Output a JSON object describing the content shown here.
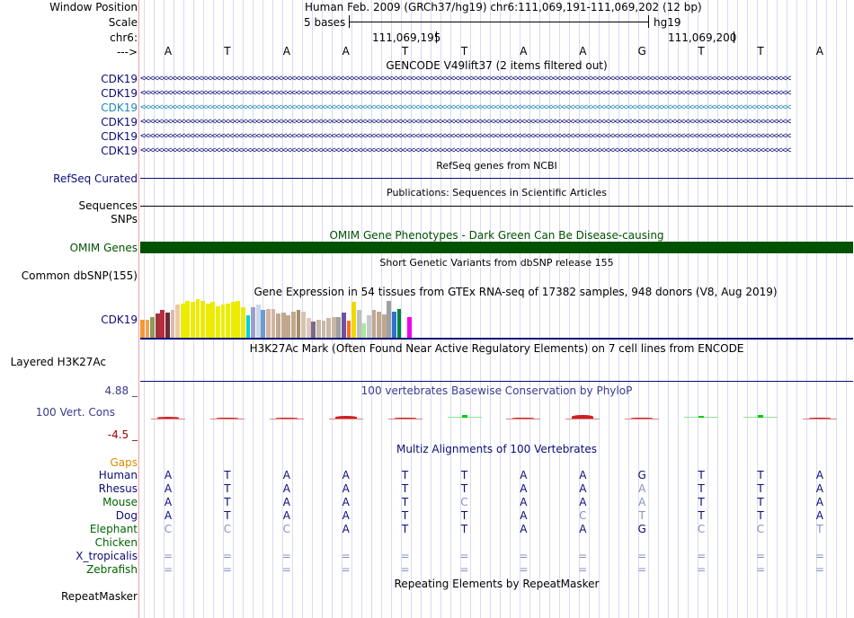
{
  "header": {
    "window_position_label": "Window Position",
    "scale_label": "Scale",
    "chrom_label": "chr6:",
    "strand_label": "--->",
    "assembly_text": "Human Feb. 2009 (GRCh37/hg19)   chr6:111,069,191-111,069,202 (12 bp)",
    "scale_text": "5 bases",
    "scale_db": "hg19",
    "coord1": "111,069,195",
    "coord2": "111,069,200",
    "bases": [
      "A",
      "T",
      "A",
      "A",
      "T",
      "T",
      "A",
      "A",
      "G",
      "T",
      "T",
      "A"
    ]
  },
  "tracks": {
    "gencode_title": "GENCODE V49lift37 (2 items filtered out)",
    "gencode_items": [
      {
        "label": "CDK19",
        "color": "#0c0c78"
      },
      {
        "label": "CDK19",
        "color": "#0c0c78"
      },
      {
        "label": "CDK19",
        "color": "#1a88b4"
      },
      {
        "label": "CDK19",
        "color": "#0c0c78"
      },
      {
        "label": "CDK19",
        "color": "#0c0c78"
      },
      {
        "label": "CDK19",
        "color": "#0c0c78"
      }
    ],
    "arrows": "<<<<<<<<<<<<<<<<<<<<<<<<<<<<<<<<<<<<<<<<<<<<<<<<<<<<<<<<<<<<<<<<<<<<<<<<<<<<<<<<<<<<<<<<<<<<<<<<<<<<<<<<<<<<<<<<<<<<<<<<<<<<<<<<<<<<<<<<<<<<<<<<<<<",
    "refseq_title": "RefSeq genes from NCBI",
    "refseq_label": "RefSeq Curated",
    "pubs_title": "Publications: Sequences in Scientific Articles",
    "sequences_label": "Sequences",
    "snps_label": "SNPs",
    "omim_title": "OMIM Gene Phenotypes - Dark Green Can Be Disease-causing",
    "omim_label": "OMIM Genes",
    "dbsnp_title": "Short Genetic Variants from dbSNP release 155",
    "dbsnp_label": "Common dbSNP(155)",
    "gtex_title": "Gene Expression in 54 tissues from GTEx RNA-seq of 17382 samples, 948 donors (V8, Aug 2019)",
    "gtex_label": "CDK19",
    "h3k_title": "H3K27Ac Mark (Often Found Near Active Regulatory Elements) on 7 cell lines from ENCODE",
    "h3k_label": "Layered H3K27Ac",
    "phylop_title": "100 vertebrates Basewise Conservation by PhyloP",
    "phylop_label": "100 Vert. Cons",
    "phylop_max": "4.88 _",
    "phylop_min": "-4.5 _",
    "multiz_title": "Multiz Alignments of 100 Vertebrates",
    "gaps_label": "Gaps",
    "repeat_title": "Repeating Elements by RepeatMasker",
    "repeat_label": "RepeatMasker"
  },
  "colors": {
    "track_label": "#0c0c78",
    "omim": "#005200",
    "gaps": "#e08a00",
    "species_green": "#006400",
    "conserved_base": "#0c0c78",
    "diff_base": "#8890c0"
  },
  "gtex_bars": [
    {
      "v": 0.45,
      "c": "#f29a36"
    },
    {
      "v": 0.45,
      "c": "#f2a35d"
    },
    {
      "v": 0.5,
      "c": "#8f9a5a"
    },
    {
      "v": 0.6,
      "c": "#a0343a"
    },
    {
      "v": 0.68,
      "c": "#bc2a3e"
    },
    {
      "v": 0.62,
      "c": "#6b2a33"
    },
    {
      "v": 0.7,
      "c": "#d9b9b2"
    },
    {
      "v": 0.82,
      "c": "#f0c8a0"
    },
    {
      "v": 0.85,
      "c": "#ecec00"
    },
    {
      "v": 0.9,
      "c": "#ecec00"
    },
    {
      "v": 0.88,
      "c": "#ecec00"
    },
    {
      "v": 0.95,
      "c": "#ecec00"
    },
    {
      "v": 0.92,
      "c": "#ecec00"
    },
    {
      "v": 0.85,
      "c": "#ecec00"
    },
    {
      "v": 0.88,
      "c": "#ecec00"
    },
    {
      "v": 0.78,
      "c": "#ecec00"
    },
    {
      "v": 0.82,
      "c": "#ecec00"
    },
    {
      "v": 0.85,
      "c": "#ecec00"
    },
    {
      "v": 0.88,
      "c": "#ecec00"
    },
    {
      "v": 0.92,
      "c": "#ecec00"
    },
    {
      "v": 0.75,
      "c": "#ecec00"
    },
    {
      "v": 0.55,
      "c": "#00d2d2"
    },
    {
      "v": 0.75,
      "c": "#9e9ecc"
    },
    {
      "v": 0.82,
      "c": "#c8d8e8"
    },
    {
      "v": 0.68,
      "c": "#6e9bd0"
    },
    {
      "v": 0.72,
      "c": "#d4b4a0"
    },
    {
      "v": 0.72,
      "c": "#d4b4a0"
    },
    {
      "v": 0.6,
      "c": "#c0a890"
    },
    {
      "v": 0.62,
      "c": "#c0a890"
    },
    {
      "v": 0.55,
      "c": "#c0a890"
    },
    {
      "v": 0.65,
      "c": "#c4a88c"
    },
    {
      "v": 0.7,
      "c": "#a4906c"
    },
    {
      "v": 0.65,
      "c": "#d4c4b0"
    },
    {
      "v": 0.48,
      "c": "#e0c8c0"
    },
    {
      "v": 0.4,
      "c": "#7a6a8a"
    },
    {
      "v": 0.45,
      "c": "#c8b8a8"
    },
    {
      "v": 0.42,
      "c": "#c8b8a8"
    },
    {
      "v": 0.48,
      "c": "#c8b8a8"
    },
    {
      "v": 0.5,
      "c": "#c8b8a8"
    },
    {
      "v": 0.52,
      "c": "#a0a0a0"
    },
    {
      "v": 0.62,
      "c": "#7050a0"
    },
    {
      "v": 0.42,
      "c": "#ff6a2a"
    },
    {
      "v": 0.88,
      "c": "#f0d800"
    },
    {
      "v": 0.7,
      "c": "#c0c0c0"
    },
    {
      "v": 0.35,
      "c": "#a8e8a0"
    },
    {
      "v": 0.55,
      "c": "#c8c8c8"
    },
    {
      "v": 0.7,
      "c": "#c0a890"
    },
    {
      "v": 0.65,
      "c": "#c0a890"
    },
    {
      "v": 0.58,
      "c": "#c0a890"
    },
    {
      "v": 0.9,
      "c": "#a0a0a0"
    },
    {
      "v": 0.65,
      "c": "#3070d0"
    },
    {
      "v": 0.72,
      "c": "#008040"
    },
    {
      "v": 0.72,
      "c": "#ffffff"
    },
    {
      "v": 0.52,
      "c": "#f000f0"
    }
  ],
  "phylop": [
    {
      "dir": "neg",
      "v": 0.2,
      "c": "#cc2020"
    },
    {
      "dir": "neg",
      "v": 0.1,
      "c": "#cc2020"
    },
    {
      "dir": "neg",
      "v": 0.1,
      "c": "#cc2020"
    },
    {
      "dir": "neg",
      "v": 0.4,
      "c": "#cc2020"
    },
    {
      "dir": "neg",
      "v": 0.05,
      "c": "#cc2020"
    },
    {
      "dir": "pos",
      "v": 0.35,
      "c": "#00cc00"
    },
    {
      "dir": "neg",
      "v": 0.02,
      "c": "#cc2020"
    },
    {
      "dir": "neg",
      "v": 0.45,
      "c": "#cc2020"
    },
    {
      "dir": "neg",
      "v": 0.1,
      "c": "#cc2020"
    },
    {
      "dir": "pos",
      "v": 0.25,
      "c": "#00cc00"
    },
    {
      "dir": "pos",
      "v": 0.4,
      "c": "#00cc00"
    },
    {
      "dir": "neg",
      "v": 0.1,
      "c": "#cc2020"
    }
  ],
  "alignments": [
    {
      "species": "Human",
      "color": "#0c0c78",
      "bases": [
        "A",
        "T",
        "A",
        "A",
        "T",
        "T",
        "A",
        "A",
        "G",
        "T",
        "T",
        "A"
      ],
      "diff": [
        false,
        false,
        false,
        false,
        false,
        false,
        false,
        false,
        false,
        false,
        false,
        false
      ]
    },
    {
      "species": "Rhesus",
      "color": "#0c0c78",
      "bases": [
        "A",
        "T",
        "A",
        "A",
        "T",
        "T",
        "A",
        "A",
        "A",
        "T",
        "T",
        "A"
      ],
      "diff": [
        false,
        false,
        false,
        false,
        false,
        false,
        false,
        false,
        true,
        false,
        false,
        false
      ]
    },
    {
      "species": "Mouse",
      "color": "#006400",
      "bases": [
        "A",
        "T",
        "A",
        "A",
        "T",
        "C",
        "A",
        "A",
        "A",
        "T",
        "T",
        "A"
      ],
      "diff": [
        false,
        false,
        false,
        false,
        false,
        true,
        false,
        false,
        true,
        false,
        false,
        false
      ]
    },
    {
      "species": "Dog",
      "color": "#0c0c78",
      "bases": [
        "A",
        "T",
        "A",
        "A",
        "T",
        "T",
        "A",
        "C",
        "T",
        "T",
        "T",
        "A"
      ],
      "diff": [
        false,
        false,
        false,
        false,
        false,
        false,
        false,
        true,
        true,
        false,
        false,
        false
      ]
    },
    {
      "species": "Elephant",
      "color": "#006400",
      "bases": [
        "C",
        "C",
        "C",
        "A",
        "T",
        "T",
        "A",
        "A",
        "G",
        "C",
        "C",
        "T"
      ],
      "diff": [
        true,
        true,
        true,
        false,
        false,
        false,
        false,
        false,
        false,
        true,
        true,
        true
      ]
    },
    {
      "species": "Chicken",
      "color": "#006400",
      "bases": [
        "",
        "",
        "",
        "",
        "",
        "",
        "",
        "",
        "",
        "",
        "",
        ""
      ],
      "diff": [
        false,
        false,
        false,
        false,
        false,
        false,
        false,
        false,
        false,
        false,
        false,
        false
      ]
    },
    {
      "species": "X_tropicalis",
      "color": "#0c0c78",
      "bases": [
        "=",
        "=",
        "=",
        "=",
        "=",
        "=",
        "=",
        "=",
        "=",
        "=",
        "=",
        "="
      ],
      "diff": [
        true,
        true,
        true,
        true,
        true,
        true,
        true,
        true,
        true,
        true,
        true,
        true
      ]
    },
    {
      "species": "Zebrafish",
      "color": "#006400",
      "bases": [
        "=",
        "=",
        "=",
        "=",
        "=",
        "=",
        "=",
        "=",
        "=",
        "=",
        "=",
        "="
      ],
      "diff": [
        true,
        true,
        true,
        true,
        true,
        true,
        true,
        true,
        true,
        true,
        true,
        true
      ]
    }
  ]
}
